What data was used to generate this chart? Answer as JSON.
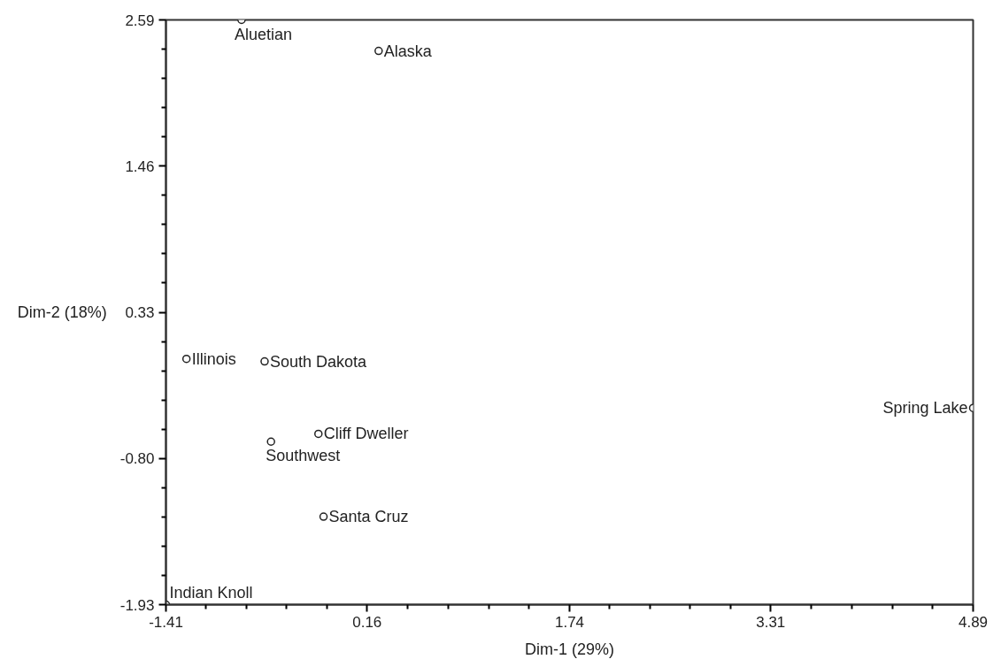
{
  "chart_data": {
    "type": "scatter",
    "xlabel": "Dim-1 (29%)",
    "ylabel": "Dim-2 (18%)",
    "x": [
      -0.82,
      0.25,
      -1.25,
      -0.64,
      4.89,
      -0.22,
      -0.59,
      -0.18,
      -1.41
    ],
    "series": [
      {
        "color": "#222222",
        "values": [
          2.59,
          2.35,
          -0.03,
          -0.05,
          -0.41,
          -0.61,
          -0.67,
          -1.25,
          -1.93
        ]
      }
    ],
    "marker": "circle",
    "xlim": [
      -1.41,
      4.89
    ],
    "ylim": [
      -1.93,
      2.59
    ],
    "xticks": [
      -1.41,
      0.16,
      1.74,
      3.31,
      4.89
    ],
    "yticks": [
      -1.93,
      {
        "value": -0.8,
        "label": "-0.80"
      },
      0.33,
      1.46,
      2.59
    ],
    "annotations": [
      {
        "text": "Aluetian",
        "x": -0.82,
        "y": 2.59
      },
      {
        "text": "Alaska",
        "x": 0.25,
        "y": 2.35
      },
      {
        "text": "Illinois",
        "x": -1.25,
        "y": -0.03
      },
      {
        "text": "South Dakota",
        "x": -0.64,
        "y": -0.05
      },
      {
        "text": "Spring Lake",
        "x": 4.89,
        "y": -0.41
      },
      {
        "text": "Cliff Dweller",
        "x": -0.22,
        "y": -0.61
      },
      {
        "text": "Southwest",
        "x": -0.59,
        "y": -0.67
      },
      {
        "text": "Santa Cruz",
        "x": -0.18,
        "y": -1.25
      },
      {
        "text": "Indian Knoll",
        "x": -1.41,
        "y": -1.93
      }
    ]
  }
}
